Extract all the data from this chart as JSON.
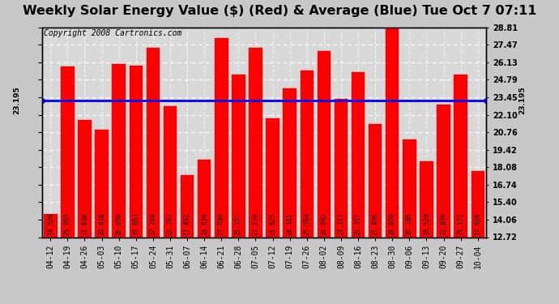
{
  "title": "Weekly Solar Energy Value ($) (Red) & Average (Blue) Tue Oct 7 07:11",
  "copyright": "Copyright 2008 Cartronics.com",
  "categories": [
    "04-12",
    "04-19",
    "04-26",
    "05-03",
    "05-10",
    "05-17",
    "05-24",
    "05-31",
    "06-07",
    "06-14",
    "06-21",
    "06-28",
    "07-05",
    "07-12",
    "07-19",
    "07-26",
    "08-02",
    "08-09",
    "08-16",
    "08-23",
    "08-30",
    "09-06",
    "09-13",
    "09-20",
    "09-27",
    "10-04"
  ],
  "values": [
    14.506,
    25.803,
    21.698,
    20.938,
    26.0,
    25.863,
    27.246,
    22.763,
    17.492,
    18.63,
    27.999,
    25.157,
    27.27,
    21.825,
    24.141,
    25.504,
    26.992,
    23.317,
    25.357,
    21.406,
    28.809,
    20.186,
    18.52,
    22.889,
    25.172,
    17.809
  ],
  "average": 23.195,
  "average_label": "23.195",
  "bar_color": "#ff0000",
  "avg_line_color": "#0000ff",
  "background_color": "#c8c8c8",
  "plot_bg_color": "#d8d8d8",
  "yticks": [
    12.72,
    14.06,
    15.4,
    16.74,
    18.08,
    19.42,
    20.76,
    22.1,
    23.45,
    24.79,
    26.13,
    27.47,
    28.81
  ],
  "ymin": 12.72,
  "ymax": 28.81,
  "title_fontsize": 11.5,
  "copyright_fontsize": 7,
  "value_fontsize": 5.5,
  "tick_fontsize": 7,
  "avg_label_fontsize": 6.5,
  "grid_color": "#ffffff",
  "border_color": "#000000"
}
